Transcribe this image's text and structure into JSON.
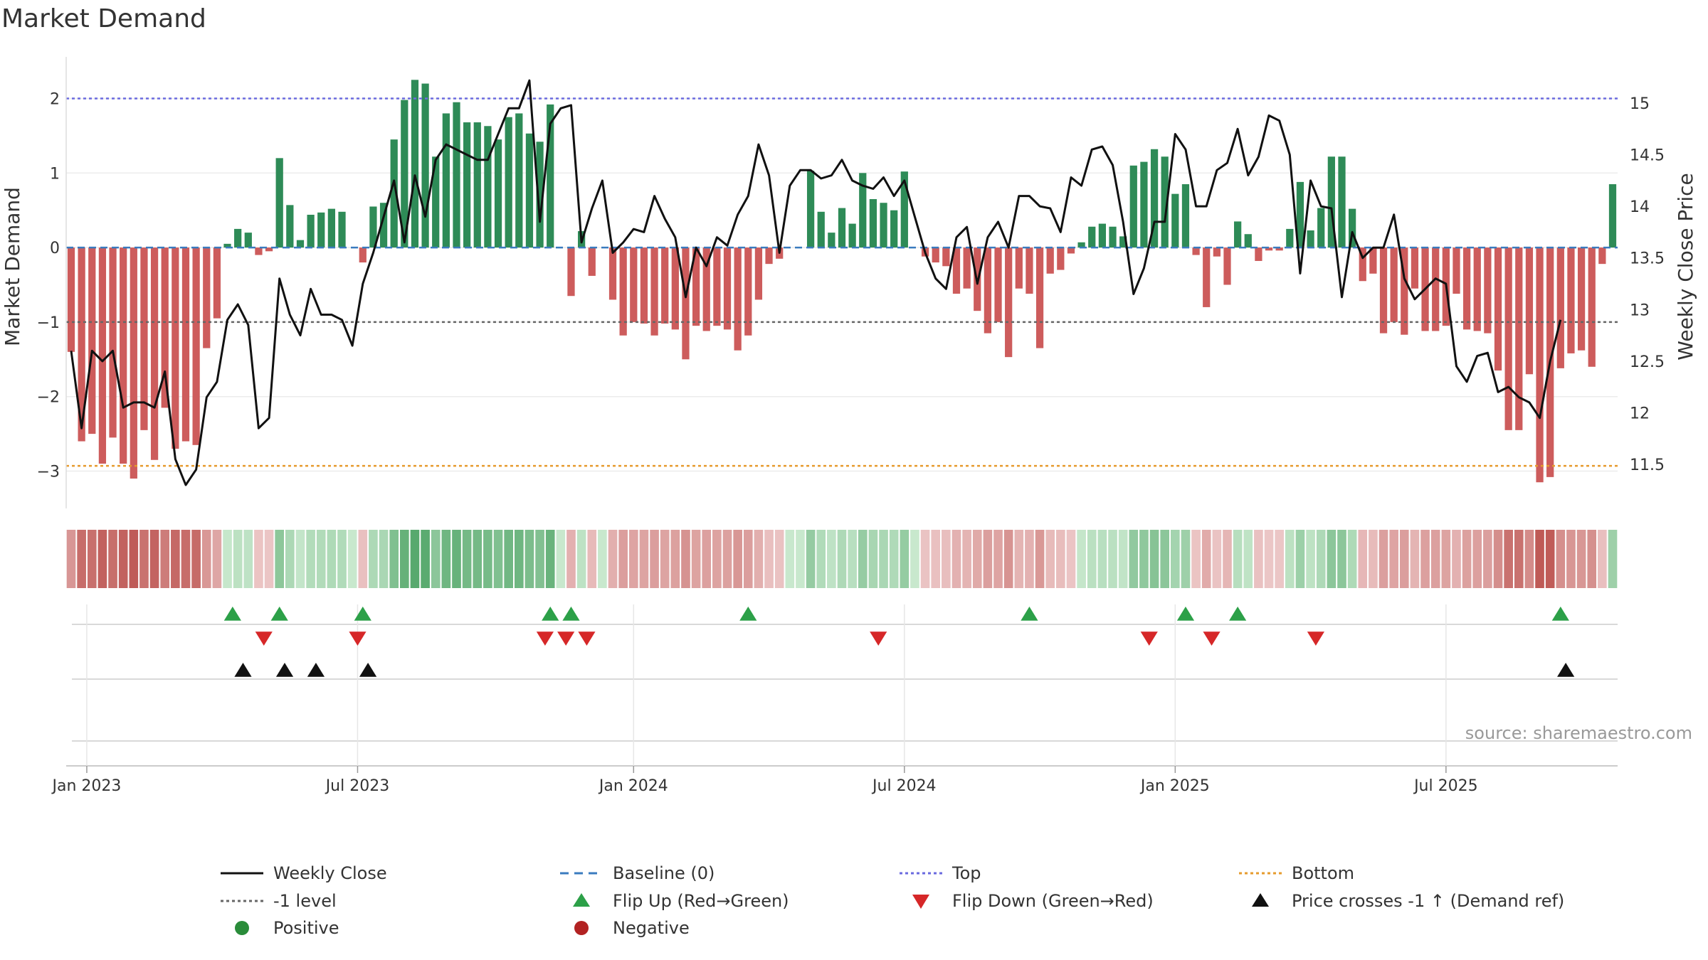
{
  "chart_data": {
    "type": "bar",
    "title": "Market Demand",
    "ylabel_left": "Market Demand",
    "ylabel_right": "Weekly Close Price",
    "ylim_left": [
      -3.5,
      2.5
    ],
    "ylim_right": [
      11.0,
      15.4
    ],
    "yticks_left": [
      2,
      1,
      0,
      -1,
      -2,
      -3
    ],
    "ytick_labels_left": [
      "2",
      "1",
      "0",
      "−1",
      "−2",
      "−3"
    ],
    "yticks_right": [
      15,
      14.5,
      14,
      13.5,
      13,
      12.5,
      12,
      11.5
    ],
    "ytick_labels_right": [
      "15",
      "14.5",
      "14",
      "13.5",
      "13",
      "12.5",
      "12",
      "11.5"
    ],
    "x_range": [
      0,
      144
    ],
    "x_ticks": [
      1.5,
      27.5,
      54,
      80,
      106,
      132
    ],
    "x_tick_labels": [
      "Jan 2023",
      "Jul 2023",
      "Jan 2024",
      "Jul 2024",
      "Jan 2025",
      "Jul 2025"
    ],
    "reference_lines": {
      "top": 2.0,
      "bottom": -2.93,
      "level": -1.0,
      "baseline": 0
    },
    "demand": [
      -1.4,
      -2.6,
      -2.5,
      -2.9,
      -2.55,
      -2.9,
      -3.1,
      -2.45,
      -2.85,
      -2.15,
      -2.7,
      -2.6,
      -2.65,
      -1.35,
      -0.95,
      0.05,
      0.25,
      0.2,
      -0.1,
      -0.05,
      1.2,
      0.57,
      0.1,
      0.44,
      0.47,
      0.52,
      0.48,
      0,
      -0.2,
      0.55,
      0.6,
      1.45,
      1.98,
      2.25,
      2.2,
      1.22,
      1.8,
      1.95,
      1.68,
      1.68,
      1.63,
      1.45,
      1.75,
      1.8,
      1.53,
      1.42,
      1.92,
      0,
      -0.65,
      0.22,
      -0.38,
      0,
      -0.7,
      -1.18,
      -1.0,
      -1.02,
      -1.18,
      -1.02,
      -1.1,
      -1.5,
      -1.05,
      -1.12,
      -1.05,
      -1.1,
      -1.38,
      -1.18,
      -0.7,
      -0.22,
      -0.15,
      0,
      0,
      1.03,
      0.48,
      0.2,
      0.53,
      0.32,
      1.0,
      0.65,
      0.6,
      0.5,
      1.02,
      0,
      -0.12,
      -0.2,
      -0.25,
      -0.62,
      -0.55,
      -0.85,
      -1.15,
      -1.0,
      -1.47,
      -0.55,
      -0.62,
      -1.35,
      -0.35,
      -0.3,
      -0.08,
      0.07,
      0.28,
      0.32,
      0.28,
      0.15,
      1.1,
      1.15,
      1.32,
      1.22,
      0.72,
      0.85,
      -0.1,
      -0.8,
      -0.12,
      -0.5,
      0.35,
      0.18,
      -0.18,
      -0.04,
      -0.04,
      0.25,
      0.88,
      0.23,
      0.53,
      1.22,
      1.22,
      0.52,
      -0.45,
      -0.35,
      -1.15,
      -1.0,
      -1.17,
      -0.55,
      -1.12,
      -1.12,
      -1.05,
      -0.62,
      -1.1,
      -1.12,
      -1.15,
      -1.65,
      -2.45,
      -2.45,
      -1.7,
      -3.15,
      -3.08,
      -1.62,
      -1.42,
      -1.38,
      -1.6,
      -0.22,
      0.85
    ],
    "weekly_close": [
      12.6,
      11.85,
      12.6,
      12.5,
      12.6,
      12.05,
      12.1,
      12.1,
      12.05,
      12.4,
      11.55,
      11.3,
      11.45,
      12.15,
      12.3,
      12.9,
      13.05,
      12.85,
      11.85,
      11.95,
      13.3,
      12.95,
      12.75,
      13.2,
      12.95,
      12.95,
      12.9,
      12.65,
      13.25,
      13.55,
      13.9,
      14.25,
      13.65,
      14.3,
      13.9,
      14.45,
      14.6,
      14.55,
      14.5,
      14.45,
      14.45,
      14.7,
      14.95,
      14.95,
      15.22,
      13.85,
      14.8,
      14.95,
      14.98,
      13.65,
      13.98,
      14.25,
      13.55,
      13.65,
      13.78,
      13.75,
      14.1,
      13.88,
      13.7,
      13.12,
      13.6,
      13.42,
      13.7,
      13.62,
      13.92,
      14.1,
      14.6,
      14.3,
      13.55,
      14.2,
      14.35,
      14.35,
      14.27,
      14.3,
      14.45,
      14.25,
      14.2,
      14.17,
      14.28,
      14.1,
      14.25,
      13.9,
      13.55,
      13.3,
      13.2,
      13.7,
      13.8,
      13.25,
      13.7,
      13.85,
      13.6,
      14.1,
      14.1,
      14.0,
      13.98,
      13.75,
      14.28,
      14.2,
      14.55,
      14.58,
      14.4,
      13.85,
      13.15,
      13.4,
      13.85,
      13.85,
      14.7,
      14.55,
      14.0,
      14.0,
      14.35,
      14.42,
      14.75,
      14.3,
      14.48,
      14.88,
      14.83,
      14.5,
      13.35,
      14.25,
      14.0,
      13.98,
      13.12,
      13.75,
      13.5,
      13.6,
      13.6,
      13.92,
      13.3,
      13.1,
      13.2,
      13.3,
      13.25,
      12.45,
      12.3,
      12.55,
      12.58,
      12.2,
      12.25,
      12.15,
      12.1,
      11.95,
      12.5,
      12.9
    ],
    "flip_up_x": [
      15.5,
      20,
      28,
      46,
      48,
      65,
      92,
      107,
      112,
      143
    ],
    "flip_down_x": [
      18.5,
      27.5,
      45.5,
      47.5,
      49.5,
      77.5,
      103.5,
      109.5,
      119.5
    ],
    "price_cross_x": [
      16.5,
      20.5,
      23.5,
      28.5,
      143.5
    ],
    "source": "source: sharemaestro.com",
    "legend": [
      {
        "label": "Weekly Close",
        "kind": "line",
        "color": "#111111"
      },
      {
        "label": "Baseline (0)",
        "kind": "dash",
        "color": "#3a7bbf"
      },
      {
        "label": "Top",
        "kind": "dot",
        "color": "#6a6adf"
      },
      {
        "label": "Bottom",
        "kind": "dot",
        "color": "#e69b2e"
      },
      {
        "label": "-1 level",
        "kind": "dot",
        "color": "#666666"
      },
      {
        "label": "Flip Up (Red→Green)",
        "kind": "tri-up",
        "color": "#2ca048"
      },
      {
        "label": "Flip Down (Green→Red)",
        "kind": "tri-down",
        "color": "#d62728"
      },
      {
        "label": "Price crosses -1 ↑ (Demand ref)",
        "kind": "tri-up",
        "color": "#111111"
      },
      {
        "label": "Positive",
        "kind": "circle",
        "color": "#2a8c3a"
      },
      {
        "label": "Negative",
        "kind": "circle",
        "color": "#b22222"
      }
    ],
    "colors": {
      "positive": "#2e8b57",
      "negative": "#cd5c5c",
      "flip_up": "#2ca048",
      "flip_down": "#d62728",
      "price_cross": "#111111",
      "top": "#6a6adf",
      "bottom": "#e69b2e",
      "level": "#666666",
      "baseline": "#3a7bbf",
      "close": "#111111"
    }
  }
}
